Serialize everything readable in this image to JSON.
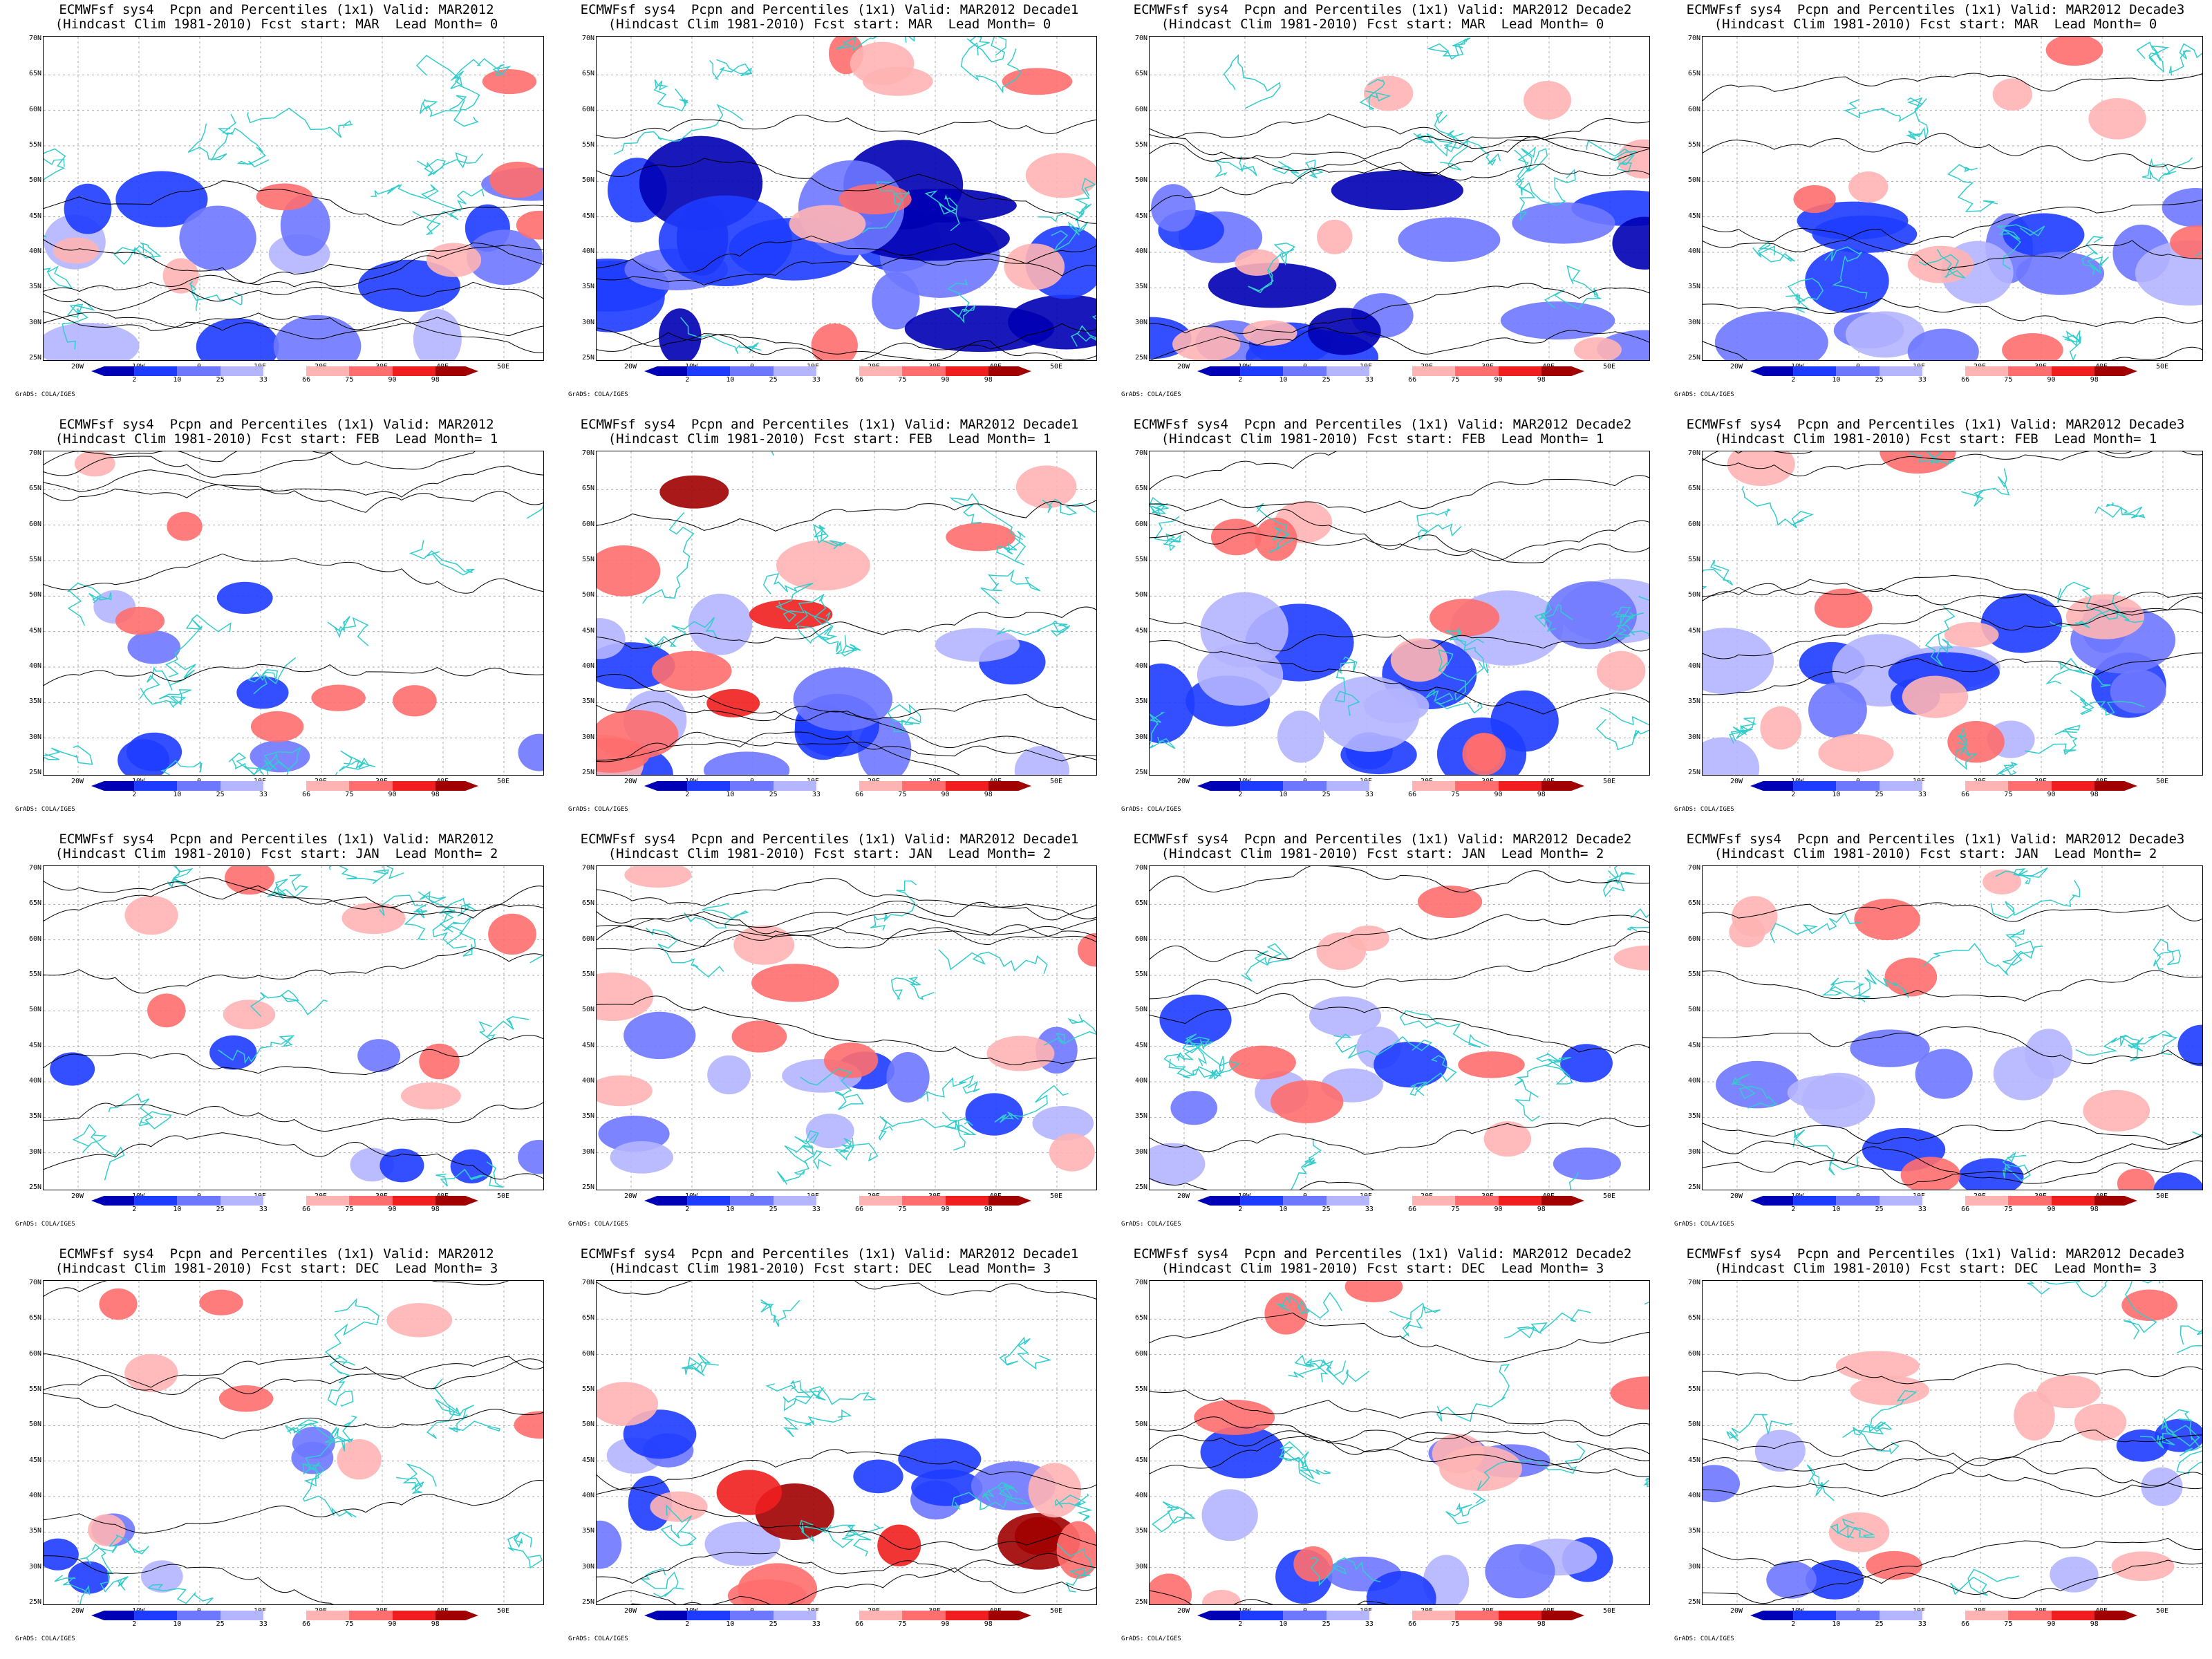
{
  "panels": [
    {
      "title1": "ECMWFsf sys4  Pcpn and Percentiles (1x1) Valid: MAR2012",
      "title2": "(Hindcast Clim 1981-2010) Fcst start: MAR  Lead Month= 0",
      "blue": 0.55,
      "red": 0.25
    },
    {
      "title1": "ECMWFsf sys4  Pcpn and Percentiles (1x1) Valid: MAR2012 Decade1",
      "title2": "(Hindcast Clim 1981-2010) Fcst start: MAR  Lead Month= 0",
      "blue": 0.95,
      "red": 0.4
    },
    {
      "title1": "ECMWFsf sys4  Pcpn and Percentiles (1x1) Valid: MAR2012 Decade2",
      "title2": "(Hindcast Clim 1981-2010) Fcst start: MAR  Lead Month= 0",
      "blue": 0.75,
      "red": 0.35
    },
    {
      "title1": "ECMWFsf sys4  Pcpn and Percentiles (1x1) Valid: MAR2012 Decade3",
      "title2": "(Hindcast Clim 1981-2010) Fcst start: MAR  Lead Month= 0",
      "blue": 0.6,
      "red": 0.3
    },
    {
      "title1": "ECMWFsf sys4  Pcpn and Percentiles (1x1) Valid: MAR2012",
      "title2": "(Hindcast Clim 1981-2010) Fcst start: FEB  Lead Month= 1",
      "blue": 0.15,
      "red": 0.2
    },
    {
      "title1": "ECMWFsf sys4  Pcpn and Percentiles (1x1) Valid: MAR2012 Decade1",
      "title2": "(Hindcast Clim 1981-2010) Fcst start: FEB  Lead Month= 1",
      "blue": 0.5,
      "red": 0.6
    },
    {
      "title1": "ECMWFsf sys4  Pcpn and Percentiles (1x1) Valid: MAR2012 Decade2",
      "title2": "(Hindcast Clim 1981-2010) Fcst start: FEB  Lead Month= 1",
      "blue": 0.7,
      "red": 0.35
    },
    {
      "title1": "ECMWFsf sys4  Pcpn and Percentiles (1x1) Valid: MAR2012 Decade3",
      "title2": "(Hindcast Clim 1981-2010) Fcst start: FEB  Lead Month= 1",
      "blue": 0.6,
      "red": 0.45
    },
    {
      "title1": "ECMWFsf sys4  Pcpn and Percentiles (1x1) Valid: MAR2012",
      "title2": "(Hindcast Clim 1981-2010) Fcst start: JAN  Lead Month= 2",
      "blue": 0.05,
      "red": 0.3
    },
    {
      "title1": "ECMWFsf sys4  Pcpn and Percentiles (1x1) Valid: MAR2012 Decade1",
      "title2": "(Hindcast Clim 1981-2010) Fcst start: JAN  Lead Month= 2",
      "blue": 0.35,
      "red": 0.5
    },
    {
      "title1": "ECMWFsf sys4  Pcpn and Percentiles (1x1) Valid: MAR2012 Decade2",
      "title2": "(Hindcast Clim 1981-2010) Fcst start: JAN  Lead Month= 2",
      "blue": 0.3,
      "red": 0.35
    },
    {
      "title1": "ECMWFsf sys4  Pcpn and Percentiles (1x1) Valid: MAR2012 Decade3",
      "title2": "(Hindcast Clim 1981-2010) Fcst start: JAN  Lead Month= 2",
      "blue": 0.35,
      "red": 0.35
    },
    {
      "title1": "ECMWFsf sys4  Pcpn and Percentiles (1x1) Valid: MAR2012",
      "title2": "(Hindcast Clim 1981-2010) Fcst start: DEC  Lead Month= 3",
      "blue": 0.02,
      "red": 0.35
    },
    {
      "title1": "ECMWFsf sys4  Pcpn and Percentiles (1x1) Valid: MAR2012 Decade1",
      "title2": "(Hindcast Clim 1981-2010) Fcst start: DEC  Lead Month= 3",
      "blue": 0.35,
      "red": 0.6
    },
    {
      "title1": "ECMWFsf sys4  Pcpn and Percentiles (1x1) Valid: MAR2012 Decade2",
      "title2": "(Hindcast Clim 1981-2010) Fcst start: DEC  Lead Month= 3",
      "blue": 0.35,
      "red": 0.45
    },
    {
      "title1": "ECMWFsf sys4  Pcpn and Percentiles (1x1) Valid: MAR2012 Decade3",
      "title2": "(Hindcast Clim 1981-2010) Fcst start: DEC  Lead Month= 3",
      "blue": 0.15,
      "red": 0.45
    }
  ],
  "lat_labels": [
    "70N",
    "65N",
    "60N",
    "55N",
    "50N",
    "45N",
    "40N",
    "35N",
    "30N",
    "25N"
  ],
  "lon_labels": [
    "20W",
    "10W",
    "0",
    "10E",
    "20E",
    "30E",
    "40E",
    "50E"
  ],
  "colorbar": {
    "ticks": [
      "2",
      "10",
      "25",
      "33",
      "66",
      "75",
      "90",
      "98"
    ],
    "colors": [
      "#0000b4",
      "#1e3cff",
      "#6e78ff",
      "#b4b4ff",
      "#ffffff",
      "#ffb4b4",
      "#ff6e6e",
      "#f01e1e",
      "#a00000"
    ]
  },
  "credit": "GrADS: COLA/IGES",
  "colors": {
    "coast": "#33cccc",
    "contour": "#000000",
    "grid": "#aaaaaa"
  }
}
